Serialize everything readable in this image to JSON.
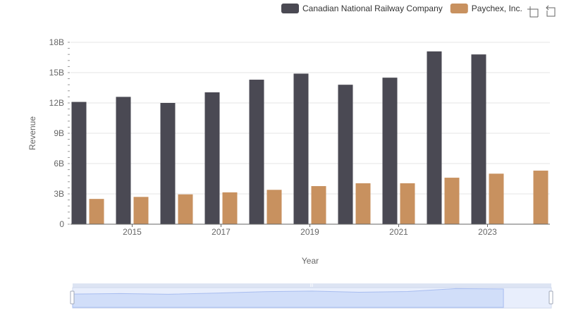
{
  "chart_data": {
    "type": "bar",
    "title": "",
    "xlabel": "Year",
    "ylabel": "Revenue",
    "ylim": [
      0,
      18
    ],
    "y_unit": "B",
    "yticks": [
      "0",
      "3B",
      "6B",
      "9B",
      "12B",
      "15B",
      "18B"
    ],
    "categories": [
      "2014",
      "2015",
      "2016",
      "2017",
      "2018",
      "2019",
      "2020",
      "2021",
      "2022",
      "2023",
      "2024"
    ],
    "xtick_labels": [
      "2015",
      "2017",
      "2019",
      "2021",
      "2023"
    ],
    "grid": true,
    "legend_position": "top-right",
    "series": [
      {
        "name": "Canadian National Railway Company",
        "color": "#4a4953",
        "values": [
          12.1,
          12.6,
          12.0,
          13.05,
          14.3,
          14.9,
          13.8,
          14.5,
          17.1,
          16.8,
          null
        ]
      },
      {
        "name": "Paychex, Inc.",
        "color": "#c8915f",
        "values": [
          2.5,
          2.7,
          2.95,
          3.15,
          3.4,
          3.77,
          4.05,
          4.05,
          4.6,
          5.0,
          5.3
        ]
      }
    ]
  },
  "toolbox": {
    "icons": [
      "zoom-icon",
      "restore-icon"
    ]
  }
}
